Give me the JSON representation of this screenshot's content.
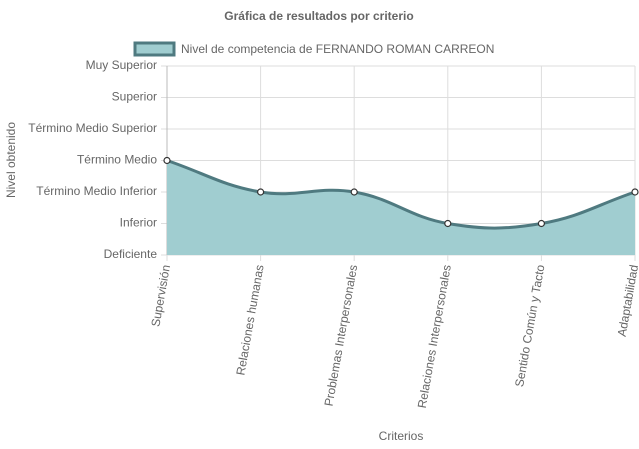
{
  "chart_data": {
    "type": "line",
    "title": "Gráfica de resultados por criterio",
    "x_label": "Criterios",
    "y_label": "Nivel obtenido",
    "categories": [
      "Supervisión",
      "Relaciones humanas",
      "Problemas Interpersonales",
      "Relaciones Interpersonales",
      "Sentido Común y Tacto",
      "Adaptabilidad"
    ],
    "series": [
      {
        "name": "Nivel de competencia de FERNANDO ROMAN CARREON",
        "color": "#4f7a80",
        "fill": "#a0cdd0",
        "values": [
          3,
          2,
          2,
          1,
          1,
          2
        ]
      }
    ],
    "ylim": [
      0,
      6
    ],
    "yticks": [
      {
        "value": 0,
        "label": "Deficiente"
      },
      {
        "value": 1,
        "label": "Inferior"
      },
      {
        "value": 2,
        "label": "Término Medio Inferior"
      },
      {
        "value": 3,
        "label": "Término Medio"
      },
      {
        "value": 4,
        "label": "Término Medio Superior"
      },
      {
        "value": 5,
        "label": "Superior"
      },
      {
        "value": 6,
        "label": "Muy Superior"
      }
    ],
    "grid": true,
    "legend": "top"
  }
}
